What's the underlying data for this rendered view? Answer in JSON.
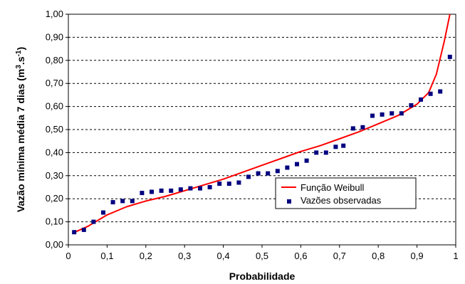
{
  "chart_data": {
    "type": "scatter",
    "xlabel": "Probabilidade",
    "ylabel_prefix": "Vazão mínima média 7 dias (m",
    "ylabel_sup1": "3",
    "ylabel_mid": ".s",
    "ylabel_sup2": "-1",
    "ylabel_suffix": ")",
    "xlim": [
      0,
      1
    ],
    "ylim": [
      0,
      1
    ],
    "x_ticks": [
      {
        "value": 0,
        "label": "0"
      },
      {
        "value": 0.1,
        "label": "0,1"
      },
      {
        "value": 0.2,
        "label": "0,2"
      },
      {
        "value": 0.3,
        "label": "0,3"
      },
      {
        "value": 0.4,
        "label": "0,4"
      },
      {
        "value": 0.5,
        "label": "0,5"
      },
      {
        "value": 0.6,
        "label": "0,6"
      },
      {
        "value": 0.7,
        "label": "0,7"
      },
      {
        "value": 0.8,
        "label": "0,8"
      },
      {
        "value": 0.9,
        "label": "0,9"
      },
      {
        "value": 1,
        "label": "1"
      }
    ],
    "y_ticks": [
      {
        "value": 0,
        "label": "0,00"
      },
      {
        "value": 0.1,
        "label": "0,10"
      },
      {
        "value": 0.2,
        "label": "0,20"
      },
      {
        "value": 0.3,
        "label": "0,30"
      },
      {
        "value": 0.4,
        "label": "0,40"
      },
      {
        "value": 0.5,
        "label": "0,50"
      },
      {
        "value": 0.6,
        "label": "0,60"
      },
      {
        "value": 0.7,
        "label": "0,70"
      },
      {
        "value": 0.8,
        "label": "0,80"
      },
      {
        "value": 0.9,
        "label": "0,90"
      },
      {
        "value": 1,
        "label": "1,00"
      }
    ],
    "grid": "horizontal-dashed",
    "legend_position": "center-right",
    "series": [
      {
        "name": "Função Weibull",
        "kind": "line",
        "color": "#ff0000",
        "x": [
          0.01,
          0.05,
          0.1,
          0.15,
          0.2,
          0.25,
          0.3,
          0.35,
          0.4,
          0.45,
          0.5,
          0.55,
          0.6,
          0.65,
          0.7,
          0.75,
          0.8,
          0.85,
          0.9,
          0.93,
          0.95,
          0.97,
          0.985
        ],
        "y": [
          0.05,
          0.08,
          0.13,
          0.165,
          0.19,
          0.21,
          0.235,
          0.26,
          0.285,
          0.315,
          0.345,
          0.375,
          0.405,
          0.43,
          0.46,
          0.49,
          0.525,
          0.56,
          0.61,
          0.66,
          0.74,
          0.88,
          1.0
        ]
      },
      {
        "name": "Vazões observadas",
        "kind": "scatter",
        "color": "#00007f",
        "x": [
          0.015,
          0.04,
          0.065,
          0.09,
          0.115,
          0.14,
          0.165,
          0.19,
          0.215,
          0.24,
          0.265,
          0.29,
          0.315,
          0.34,
          0.365,
          0.39,
          0.415,
          0.44,
          0.465,
          0.49,
          0.515,
          0.54,
          0.565,
          0.59,
          0.615,
          0.64,
          0.665,
          0.69,
          0.71,
          0.735,
          0.76,
          0.785,
          0.81,
          0.835,
          0.86,
          0.885,
          0.91,
          0.935,
          0.96,
          0.985
        ],
        "y": [
          0.055,
          0.065,
          0.1,
          0.14,
          0.185,
          0.19,
          0.19,
          0.225,
          0.23,
          0.235,
          0.235,
          0.24,
          0.245,
          0.245,
          0.25,
          0.265,
          0.265,
          0.27,
          0.295,
          0.31,
          0.31,
          0.32,
          0.335,
          0.35,
          0.365,
          0.4,
          0.4,
          0.425,
          0.43,
          0.505,
          0.51,
          0.56,
          0.565,
          0.57,
          0.57,
          0.605,
          0.63,
          0.655,
          0.665,
          0.815
        ]
      }
    ]
  }
}
